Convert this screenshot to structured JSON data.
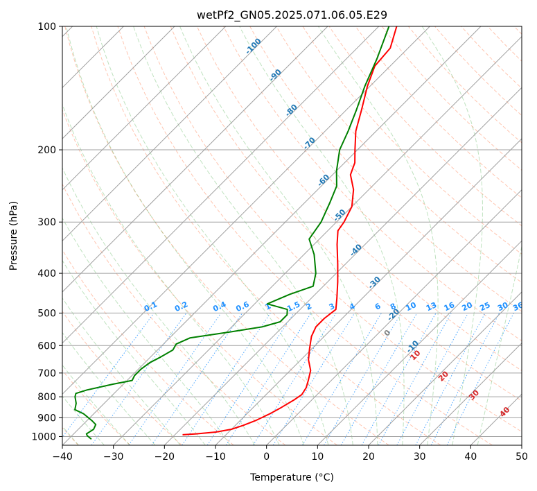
{
  "chart_data": {
    "type": "line",
    "chart_subtype": "skew-T log-P diagram",
    "title": "wetPf2_GN05.2025.071.06.05.E29",
    "xlabel": "Temperature (°C)",
    "ylabel": "Pressure (hPa)",
    "xlim": [
      -40,
      50
    ],
    "ylim": [
      1050,
      100
    ],
    "yscale": "log",
    "x_ticks": [
      "−40",
      "−30",
      "−20",
      "−10",
      "0",
      "10",
      "20",
      "30",
      "40",
      "50"
    ],
    "y_ticks": [
      "100",
      "200",
      "300",
      "400",
      "500",
      "600",
      "700",
      "800",
      "900",
      "1000"
    ],
    "grid": true,
    "series": [
      {
        "color": "#ff0000",
        "points": [
          {
            "p": 990,
            "t": -18.5
          },
          {
            "p": 985,
            "t": -16.0
          },
          {
            "p": 975,
            "t": -12.5
          },
          {
            "p": 960,
            "t": -10.0
          },
          {
            "p": 940,
            "t": -8.5
          },
          {
            "p": 915,
            "t": -7.0
          },
          {
            "p": 880,
            "t": -5.5
          },
          {
            "p": 850,
            "t": -4.5
          },
          {
            "p": 815,
            "t": -3.5
          },
          {
            "p": 790,
            "t": -3.0
          },
          {
            "p": 760,
            "t": -3.5
          },
          {
            "p": 730,
            "t": -4.5
          },
          {
            "p": 690,
            "t": -6.0
          },
          {
            "p": 650,
            "t": -8.5
          },
          {
            "p": 610,
            "t": -10.5
          },
          {
            "p": 570,
            "t": -12.5
          },
          {
            "p": 540,
            "t": -13.5
          },
          {
            "p": 515,
            "t": -13.5
          },
          {
            "p": 490,
            "t": -13.0
          },
          {
            "p": 460,
            "t": -15.0
          },
          {
            "p": 420,
            "t": -18.0
          },
          {
            "p": 380,
            "t": -21.5
          },
          {
            "p": 340,
            "t": -25.5
          },
          {
            "p": 315,
            "t": -28.0
          },
          {
            "p": 300,
            "t": -28.5
          },
          {
            "p": 275,
            "t": -30.0
          },
          {
            "p": 250,
            "t": -33.0
          },
          {
            "p": 230,
            "t": -36.5
          },
          {
            "p": 215,
            "t": -38.0
          },
          {
            "p": 200,
            "t": -40.5
          },
          {
            "p": 180,
            "t": -44.0
          },
          {
            "p": 160,
            "t": -47.0
          },
          {
            "p": 140,
            "t": -50.5
          },
          {
            "p": 125,
            "t": -53.0
          },
          {
            "p": 113,
            "t": -53.5
          },
          {
            "p": 100,
            "t": -56.5
          }
        ]
      },
      {
        "color": "#008000",
        "points": [
          {
            "p": 1015,
            "t": -35.5
          },
          {
            "p": 995,
            "t": -37.0
          },
          {
            "p": 985,
            "t": -37.5
          },
          {
            "p": 960,
            "t": -37.0
          },
          {
            "p": 935,
            "t": -37.5
          },
          {
            "p": 915,
            "t": -39.0
          },
          {
            "p": 880,
            "t": -42.0
          },
          {
            "p": 860,
            "t": -44.5
          },
          {
            "p": 830,
            "t": -45.5
          },
          {
            "p": 800,
            "t": -47.0
          },
          {
            "p": 785,
            "t": -47.5
          },
          {
            "p": 770,
            "t": -46.0
          },
          {
            "p": 745,
            "t": -42.0
          },
          {
            "p": 730,
            "t": -39.0
          },
          {
            "p": 710,
            "t": -39.5
          },
          {
            "p": 685,
            "t": -39.5
          },
          {
            "p": 660,
            "t": -39.0
          },
          {
            "p": 640,
            "t": -38.0
          },
          {
            "p": 615,
            "t": -37.0
          },
          {
            "p": 595,
            "t": -37.5
          },
          {
            "p": 575,
            "t": -36.0
          },
          {
            "p": 555,
            "t": -29.0
          },
          {
            "p": 540,
            "t": -24.0
          },
          {
            "p": 525,
            "t": -21.5
          },
          {
            "p": 505,
            "t": -21.5
          },
          {
            "p": 490,
            "t": -22.5
          },
          {
            "p": 475,
            "t": -27.5
          },
          {
            "p": 450,
            "t": -25.0
          },
          {
            "p": 430,
            "t": -22.0
          },
          {
            "p": 400,
            "t": -24.0
          },
          {
            "p": 360,
            "t": -28.0
          },
          {
            "p": 330,
            "t": -32.0
          },
          {
            "p": 300,
            "t": -33.0
          },
          {
            "p": 270,
            "t": -35.0
          },
          {
            "p": 245,
            "t": -37.0
          },
          {
            "p": 225,
            "t": -40.0
          },
          {
            "p": 200,
            "t": -43.5
          },
          {
            "p": 180,
            "t": -45.5
          },
          {
            "p": 160,
            "t": -48.0
          },
          {
            "p": 140,
            "t": -51.0
          },
          {
            "p": 120,
            "t": -54.0
          },
          {
            "p": 100,
            "t": -58.0
          }
        ]
      }
    ],
    "background_lines": {
      "isotherms_color": "#a0a0a0",
      "dry_adiabats_color": "#ff7f50",
      "moist_adiabats_color": "#2ca02c",
      "mixing_ratio_color": "#1e90ff",
      "mixing_ratio_label_color": "#1e90ff",
      "moist_label_color": "#1f77b4",
      "dry_label_color": "#d62728"
    },
    "moist_adiabat_labels": [
      {
        "text": "-100",
        "p": 113,
        "t": -80
      },
      {
        "text": "-90",
        "p": 133,
        "t": -70
      },
      {
        "text": "-80",
        "p": 162,
        "t": -60
      },
      {
        "text": "-70",
        "p": 195,
        "t": -50
      },
      {
        "text": "-60",
        "p": 240,
        "t": -40
      },
      {
        "text": "-50",
        "p": 292,
        "t": -30
      },
      {
        "text": "-40",
        "p": 355,
        "t": -20
      },
      {
        "text": "-30",
        "p": 426,
        "t": -10
      },
      {
        "text": "-20",
        "p": 510,
        "t": 0
      },
      {
        "text": "-10",
        "p": 610,
        "t": 10
      }
    ],
    "mixing_ratio_labels": [
      "0.1",
      "0.2",
      "0.4",
      "0.6",
      "1",
      "1.5",
      "2",
      "3",
      "4",
      "6",
      "8",
      "10",
      "13",
      "16",
      "20",
      "25",
      "30",
      "36"
    ],
    "mixing_ratio_label_x": [
      -22.5,
      -16.5,
      -9.0,
      -4.5,
      0.5,
      5.5,
      8.5,
      13.0,
      17.0,
      22.0,
      25.0,
      28.5,
      32.5,
      36.0,
      39.5,
      43.0,
      46.5,
      49.5
    ],
    "extra_labels": [
      {
        "text": "0",
        "p": 565,
        "t": 24,
        "color": "#808080"
      },
      {
        "text": "10",
        "p": 640,
        "t": 29.5,
        "color": "#d62728"
      },
      {
        "text": "20",
        "p": 720,
        "t": 35,
        "color": "#d62728"
      },
      {
        "text": "30",
        "p": 800,
        "t": 41,
        "color": "#d62728"
      },
      {
        "text": "40",
        "p": 880,
        "t": 47,
        "color": "#d62728"
      }
    ]
  }
}
